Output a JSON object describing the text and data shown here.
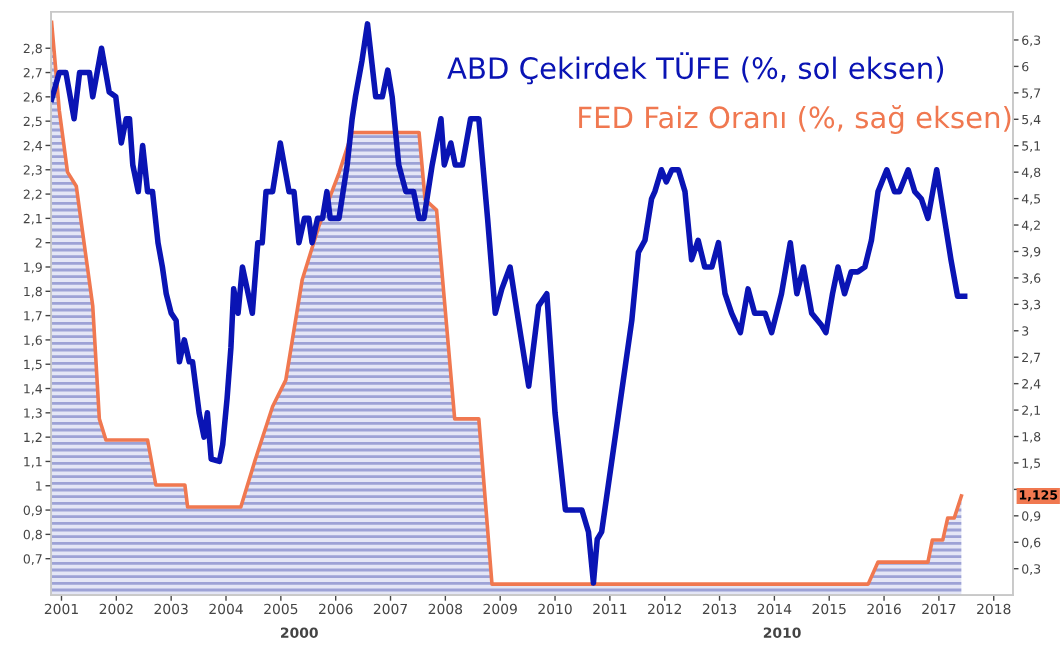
{
  "chart_data": {
    "type": "line",
    "xlim": [
      2000.81,
      2018.35
    ],
    "xticks": [
      2001,
      2002,
      2003,
      2004,
      2005,
      2006,
      2007,
      2008,
      2009,
      2010,
      2011,
      2012,
      2013,
      2014,
      2015,
      2016,
      2017,
      2018
    ],
    "ylim": [
      0.55,
      2.95
    ],
    "yticks": [
      {
        "value": 0.7,
        "label": "0,7"
      },
      {
        "value": 0.8,
        "label": "0,8"
      },
      {
        "value": 0.9,
        "label": "0,9"
      },
      1,
      {
        "value": 1.1,
        "label": "1,1"
      },
      {
        "value": 1.2,
        "label": "1,2"
      },
      {
        "value": 1.3,
        "label": "1,3"
      },
      {
        "value": 1.4,
        "label": "1,4"
      },
      {
        "value": 1.5,
        "label": "1,5"
      },
      {
        "value": 1.6,
        "label": "1,6"
      },
      {
        "value": 1.7,
        "label": "1,7"
      },
      {
        "value": 1.8,
        "label": "1,8"
      },
      {
        "value": 1.9,
        "label": "1,9"
      },
      2,
      {
        "value": 2.1,
        "label": "2,1"
      },
      {
        "value": 2.2,
        "label": "2,2"
      },
      {
        "value": 2.3,
        "label": "2,3"
      },
      {
        "value": 2.4,
        "label": "2,4"
      },
      {
        "value": 2.5,
        "label": "2,5"
      },
      {
        "value": 2.6,
        "label": "2,6"
      },
      {
        "value": 2.7,
        "label": "2,7"
      },
      {
        "value": 2.8,
        "label": "2,8"
      }
    ],
    "y2lim": [
      0,
      6.62
    ],
    "y2ticks": [
      {
        "value": 0.3,
        "label": "0,3"
      },
      {
        "value": 0.6,
        "label": "0,6"
      },
      {
        "value": 0.9,
        "label": "0,9"
      },
      {
        "value": 1.2,
        "label": null
      },
      {
        "value": 1.5,
        "label": "1,5"
      },
      {
        "value": 1.8,
        "label": "1,8"
      },
      {
        "value": 2.1,
        "label": "2,1"
      },
      {
        "value": 2.4,
        "label": "2,4"
      },
      {
        "value": 2.7,
        "label": "2,7"
      },
      3,
      {
        "value": 3.3,
        "label": "3,3"
      },
      {
        "value": 3.6,
        "label": "3,6"
      },
      {
        "value": 3.9,
        "label": "3,9"
      },
      {
        "value": 4.2,
        "label": "4,2"
      },
      {
        "value": 4.5,
        "label": "4,5"
      },
      {
        "value": 4.8,
        "label": "4,8"
      },
      {
        "value": 5.1,
        "label": "5,1"
      },
      {
        "value": 5.4,
        "label": "5,4"
      },
      {
        "value": 5.7,
        "label": "5,7"
      },
      6,
      {
        "value": 6.3,
        "label": "6,3"
      }
    ],
    "grid": false,
    "legend": "top right",
    "annotations": [
      "2000",
      "2010",
      "1,125"
    ],
    "series": [
      {
        "name": "ABD Çekirdek TÜFE (%, sol eksen)",
        "color": "#0a14b4",
        "x": [
          2000.82,
          2000.96,
          2001.08,
          2001.23,
          2001.33,
          2001.51,
          2001.57,
          2001.73,
          2001.87,
          2001.99,
          2002.09,
          2002.18,
          2002.24,
          2002.3,
          2002.4,
          2002.48,
          2002.57,
          2002.66,
          2002.76,
          2002.84,
          2002.91,
          2003.0,
          2003.09,
          2003.15,
          2003.24,
          2003.33,
          2003.39,
          2003.51,
          2003.6,
          2003.66,
          2003.73,
          2003.88,
          2003.94,
          2004.02,
          2004.09,
          2004.14,
          2004.22,
          2004.3,
          2004.48,
          2004.58,
          2004.66,
          2004.73,
          2004.85,
          2004.99,
          2005.15,
          2005.24,
          2005.33,
          2005.43,
          2005.51,
          2005.57,
          2005.67,
          2005.76,
          2005.84,
          2005.9,
          2006.06,
          2006.21,
          2006.3,
          2006.36,
          2006.48,
          2006.58,
          2006.73,
          2006.85,
          2006.95,
          2007.03,
          2007.15,
          2007.28,
          2007.42,
          2007.52,
          2007.61,
          2007.76,
          2007.92,
          2007.98,
          2008.1,
          2008.18,
          2008.31,
          2008.46,
          2008.61,
          2008.77,
          2008.91,
          2009.03,
          2009.18,
          2009.31,
          2009.52,
          2009.7,
          2009.85,
          2010.0,
          2010.19,
          2010.49,
          2010.61,
          2010.7,
          2010.77,
          2010.85,
          2010.97,
          2011.16,
          2011.28,
          2011.4,
          2011.52,
          2011.64,
          2011.76,
          2011.82,
          2011.94,
          2012.03,
          2012.13,
          2012.25,
          2012.37,
          2012.49,
          2012.61,
          2012.73,
          2012.86,
          2012.98,
          2013.1,
          2013.22,
          2013.38,
          2013.52,
          2013.64,
          2013.83,
          2013.95,
          2014.13,
          2014.29,
          2014.41,
          2014.53,
          2014.68,
          2014.86,
          2014.94,
          2015.06,
          2015.16,
          2015.28,
          2015.4,
          2015.52,
          2015.65,
          2015.77,
          2015.89,
          2016.05,
          2016.19,
          2016.28,
          2016.44,
          2016.56,
          2016.68,
          2016.8,
          2016.96,
          2017.1,
          2017.22,
          2017.34,
          2017.47
        ],
        "values": [
          2.59,
          2.7,
          2.7,
          2.51,
          2.7,
          2.7,
          2.6,
          2.8,
          2.62,
          2.6,
          2.41,
          2.51,
          2.51,
          2.32,
          2.21,
          2.4,
          2.21,
          2.21,
          2.0,
          1.9,
          1.79,
          1.71,
          1.68,
          1.51,
          1.6,
          1.51,
          1.51,
          1.3,
          1.2,
          1.3,
          1.11,
          1.1,
          1.17,
          1.36,
          1.57,
          1.81,
          1.71,
          1.9,
          1.71,
          2.0,
          2.0,
          2.21,
          2.21,
          2.41,
          2.21,
          2.21,
          2.0,
          2.1,
          2.1,
          2.0,
          2.1,
          2.1,
          2.21,
          2.1,
          2.1,
          2.32,
          2.51,
          2.6,
          2.75,
          2.9,
          2.6,
          2.6,
          2.71,
          2.6,
          2.32,
          2.21,
          2.21,
          2.1,
          2.1,
          2.32,
          2.51,
          2.32,
          2.41,
          2.32,
          2.32,
          2.51,
          2.51,
          2.1,
          1.71,
          1.81,
          1.9,
          1.71,
          1.41,
          1.74,
          1.79,
          1.3,
          0.9,
          0.9,
          0.81,
          0.6,
          0.78,
          0.81,
          1.0,
          1.3,
          1.49,
          1.68,
          1.96,
          2.01,
          2.18,
          2.21,
          2.3,
          2.25,
          2.3,
          2.3,
          2.21,
          1.93,
          2.01,
          1.9,
          1.9,
          2.0,
          1.79,
          1.71,
          1.63,
          1.81,
          1.71,
          1.71,
          1.63,
          1.79,
          2.0,
          1.79,
          1.9,
          1.71,
          1.66,
          1.63,
          1.79,
          1.9,
          1.79,
          1.88,
          1.88,
          1.9,
          2.01,
          2.21,
          2.3,
          2.21,
          2.21,
          2.3,
          2.21,
          2.18,
          2.1,
          2.3,
          2.1,
          1.93,
          1.78,
          1.78
        ]
      },
      {
        "name": "FED Faiz Oranı (%, sağ eksen)",
        "color": "#f07850",
        "type": "area",
        "axis": "y2",
        "x": [
          2000.82,
          2000.96,
          2001.11,
          2001.27,
          2001.57,
          2001.69,
          2001.81,
          2002.57,
          2002.72,
          2003.25,
          2003.3,
          2004.27,
          2004.53,
          2004.85,
          2005.09,
          2005.39,
          2005.7,
          2006.06,
          2006.3,
          2007.52,
          2007.63,
          2007.84,
          2008.17,
          2008.61,
          2008.85,
          2015.71,
          2015.89,
          2016.8,
          2016.88,
          2017.07,
          2017.16,
          2017.28,
          2017.41
        ],
        "values": [
          6.5,
          5.5,
          4.8,
          4.64,
          3.28,
          2.0,
          1.76,
          1.76,
          1.25,
          1.25,
          1.0,
          1.0,
          1.53,
          2.14,
          2.44,
          3.58,
          4.2,
          4.79,
          5.25,
          5.25,
          4.49,
          4.37,
          2.0,
          2.0,
          0.125,
          0.125,
          0.375,
          0.375,
          0.625,
          0.625,
          0.875,
          0.875,
          1.125
        ]
      }
    ]
  }
}
